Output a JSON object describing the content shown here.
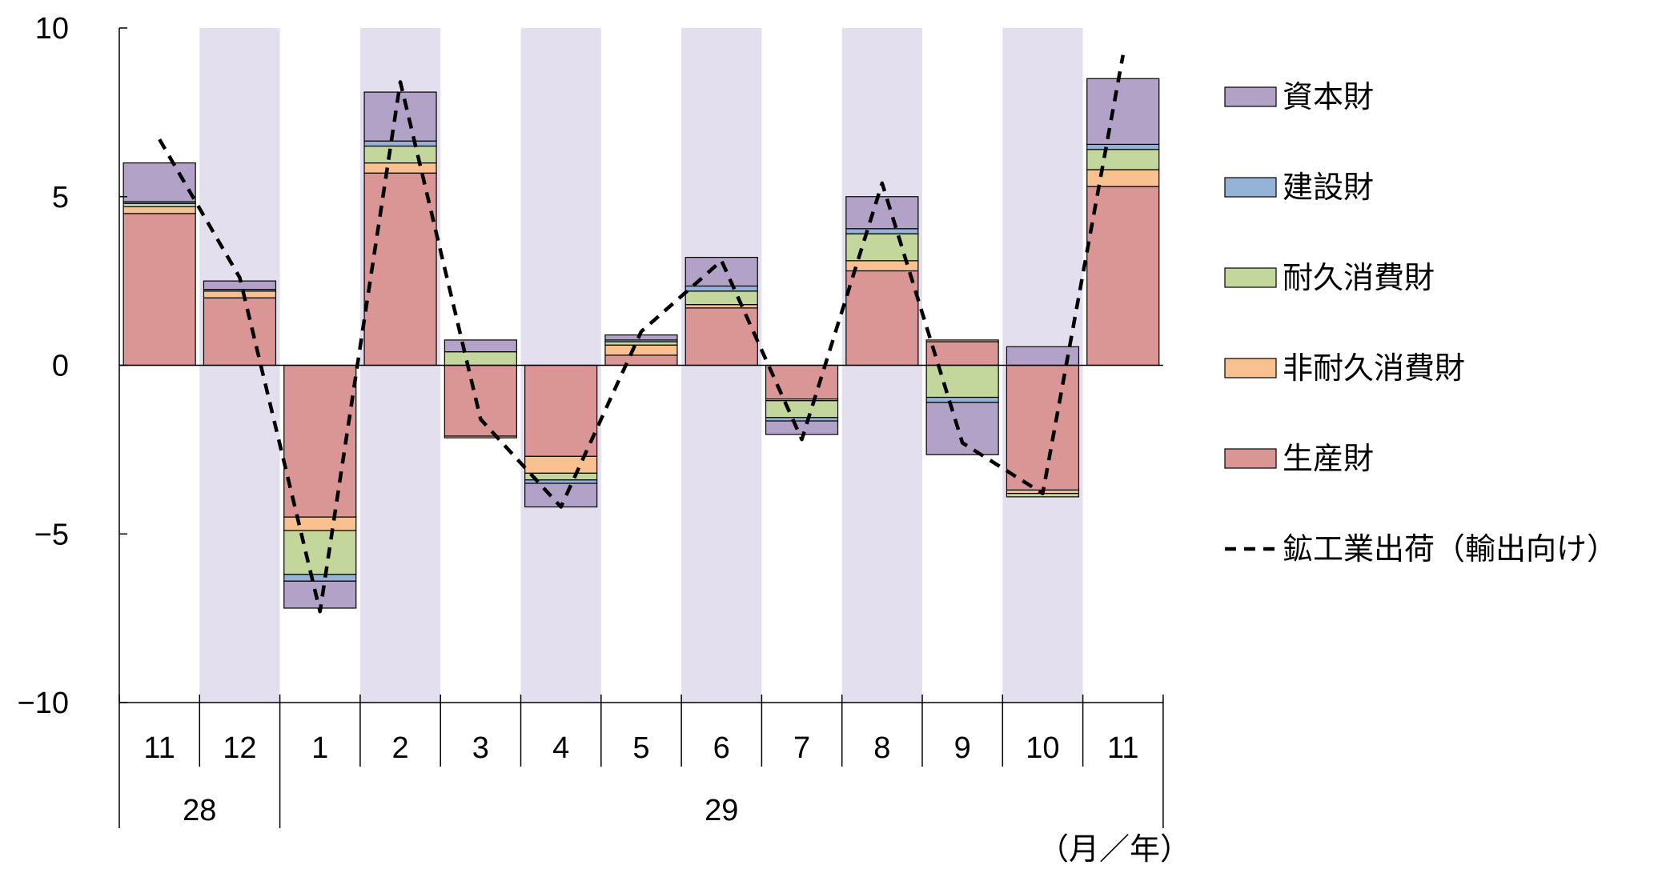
{
  "chart_data": {
    "type": "bar",
    "stacked": true,
    "categories": [
      "11",
      "12",
      "1",
      "2",
      "3",
      "4",
      "5",
      "6",
      "7",
      "8",
      "9",
      "10",
      "11"
    ],
    "year_groups": [
      {
        "label": "28",
        "start": 0,
        "end": 1
      },
      {
        "label": "29",
        "start": 2,
        "end": 12
      }
    ],
    "unit_label": "（月／年）",
    "ylim": [
      -10,
      10
    ],
    "yticks": [
      10,
      5,
      0,
      -5,
      -10
    ],
    "ytick_labels": [
      "10",
      "5",
      "0",
      "−5",
      "−10"
    ],
    "grid": false,
    "shaded_categories": [
      1,
      3,
      5,
      7,
      9,
      11
    ],
    "series": [
      {
        "name": "生産財",
        "color": "#d99694",
        "values": [
          4.5,
          2.0,
          -4.5,
          5.7,
          -2.1,
          -2.7,
          0.3,
          1.7,
          -1.0,
          2.8,
          0.7,
          -3.7,
          5.3
        ]
      },
      {
        "name": "非耐久消費財",
        "color": "#fac090",
        "values": [
          0.2,
          0.2,
          -0.4,
          0.3,
          -0.05,
          -0.5,
          0.3,
          0.1,
          -0.05,
          0.3,
          0.05,
          -0.1,
          0.5
        ]
      },
      {
        "name": "耐久消費財",
        "color": "#c3d69b",
        "values": [
          0.1,
          0.0,
          -1.3,
          0.5,
          0.4,
          -0.2,
          0.1,
          0.4,
          -0.5,
          0.8,
          -0.95,
          -0.1,
          0.6
        ]
      },
      {
        "name": "建設財",
        "color": "#95b3d7",
        "values": [
          0.05,
          0.05,
          -0.2,
          0.15,
          0.0,
          -0.1,
          0.05,
          0.15,
          -0.1,
          0.15,
          -0.15,
          0.0,
          0.15
        ]
      },
      {
        "name": "資本財",
        "color": "#b3a2c7",
        "values": [
          1.15,
          0.25,
          -0.8,
          1.45,
          0.35,
          -0.7,
          0.15,
          0.85,
          -0.4,
          0.95,
          -1.55,
          0.55,
          1.95
        ]
      }
    ],
    "line": {
      "name": "鉱工業出荷（輸出向け）",
      "color": "#000000",
      "style": "dashed",
      "values": [
        6.7,
        2.6,
        -7.3,
        8.4,
        -1.6,
        -4.2,
        1.0,
        3.1,
        -2.2,
        5.4,
        -2.3,
        -3.8,
        9.2
      ]
    },
    "legend_position": "right",
    "legend_order": [
      "資本財",
      "建設財",
      "耐久消費財",
      "非耐久消費財",
      "生産財",
      "鉱工業出荷（輸出向け）"
    ]
  }
}
